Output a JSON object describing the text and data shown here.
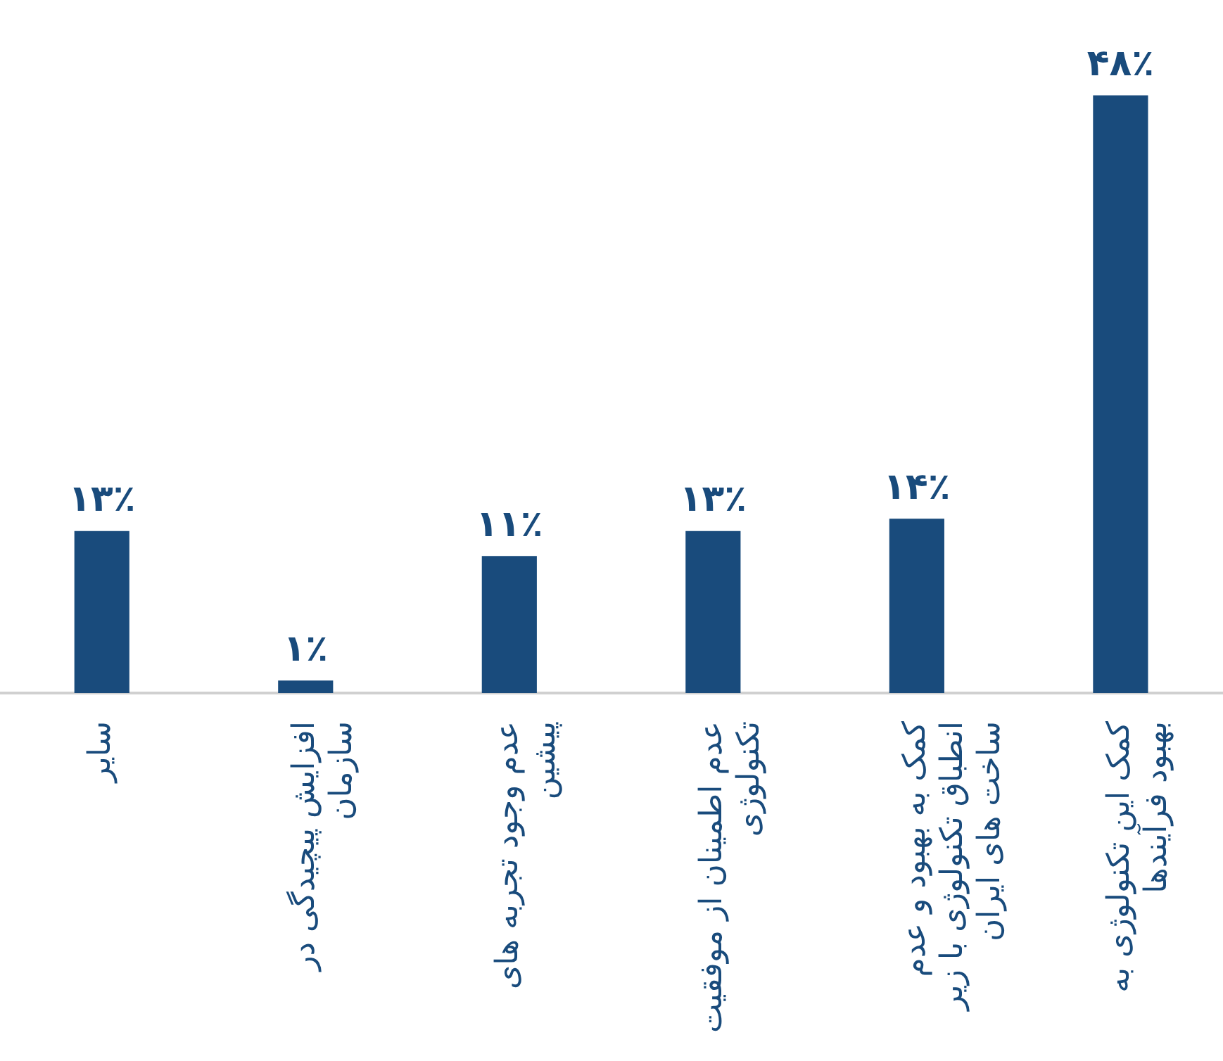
{
  "chart_data": {
    "type": "bar",
    "categories": [
      "سایر",
      "افزایش پیچیدگی در سازمان",
      "عدم وجود تجربه های پیشین",
      "عدم اطمینان از موفقیت تکنولوژی",
      "کمک به بهبود و عدم انطباق تکنولوژی با زیر ساخت های ایران",
      "کمک این تکنولوژی به بهبود فرآیندها"
    ],
    "values": [
      13,
      1,
      11,
      13,
      14,
      48
    ],
    "value_labels": [
      "۱۳٪",
      "۱٪",
      "۱۱٪",
      "۱۳٪",
      "۱۴٪",
      "۴۸٪"
    ],
    "color": "#194b7c",
    "grid": false,
    "legend": false,
    "tick_labels": "x"
  }
}
